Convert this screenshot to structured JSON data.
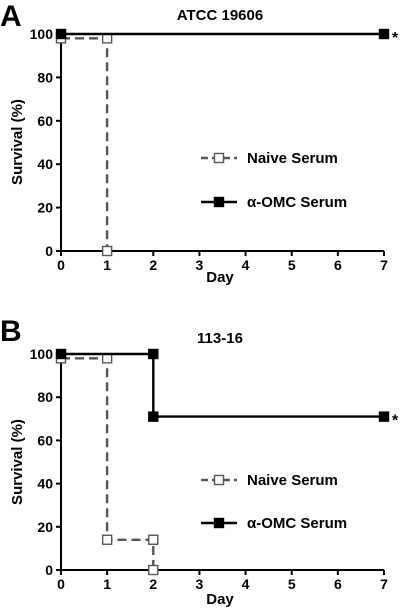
{
  "chart_data": [
    {
      "panel_label": "A",
      "type": "line",
      "title": "ATCC 19606",
      "xlabel": "Day",
      "ylabel": "Survival (%)",
      "xlim": [
        0,
        7
      ],
      "ylim": [
        0,
        100
      ],
      "x_ticks": [
        "0",
        "1",
        "2",
        "3",
        "4",
        "5",
        "6",
        "7"
      ],
      "y_ticks": [
        "0",
        "20",
        "40",
        "60",
        "80",
        "100"
      ],
      "grid": false,
      "legend_position": "center-right",
      "step": true,
      "series": [
        {
          "name": "Naive Serum",
          "style": "dashed",
          "marker": "open-square",
          "color": "#555555",
          "points": [
            [
              0,
              98
            ],
            [
              1,
              98
            ],
            [
              1,
              0
            ]
          ]
        },
        {
          "name": "α-OMC Serum",
          "style": "solid",
          "marker": "filled-square",
          "color": "#000000",
          "points": [
            [
              0,
              100
            ],
            [
              7,
              100
            ]
          ],
          "annotation": "*"
        }
      ]
    },
    {
      "panel_label": "B",
      "type": "line",
      "title": "113-16",
      "xlabel": "Day",
      "ylabel": "Survival (%)",
      "xlim": [
        0,
        7
      ],
      "ylim": [
        0,
        100
      ],
      "x_ticks": [
        "0",
        "1",
        "2",
        "3",
        "4",
        "5",
        "6",
        "7"
      ],
      "y_ticks": [
        "0",
        "20",
        "40",
        "60",
        "80",
        "100"
      ],
      "grid": false,
      "legend_position": "center-right",
      "step": true,
      "series": [
        {
          "name": "Naive Serum",
          "style": "dashed",
          "marker": "open-square",
          "color": "#555555",
          "points": [
            [
              0,
              98
            ],
            [
              1,
              98
            ],
            [
              1,
              14
            ],
            [
              2,
              14
            ],
            [
              2,
              0
            ]
          ]
        },
        {
          "name": "α-OMC Serum",
          "style": "solid",
          "marker": "filled-square",
          "color": "#000000",
          "points": [
            [
              0,
              100
            ],
            [
              2,
              100
            ],
            [
              2,
              71
            ],
            [
              7,
              71
            ]
          ],
          "annotation": "*"
        }
      ]
    }
  ]
}
